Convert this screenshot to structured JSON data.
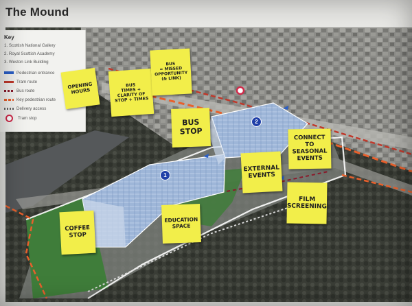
{
  "title": "The Mound",
  "key": {
    "heading": "Key",
    "items": [
      {
        "label": "1. Scottish National Gallery",
        "symbol": "none"
      },
      {
        "label": "2. Royal Scottish Academy",
        "symbol": "none"
      },
      {
        "label": "3. Weston Link Building",
        "symbol": "none"
      },
      {
        "label": "Pedestrian entrance",
        "symbol": "arrow",
        "color": "#2a5fc7"
      },
      {
        "label": "Tram route",
        "symbol": "line",
        "color": "#c0392b"
      },
      {
        "label": "Bus route",
        "symbol": "dash",
        "color": "#8b1a2b"
      },
      {
        "label": "Key pedestrian route",
        "symbol": "dash",
        "color": "#e8602c"
      },
      {
        "label": "Delivery access",
        "symbol": "dot",
        "color": "#666666"
      },
      {
        "label": "Tram stop",
        "symbol": "circle",
        "color": "#d12a4a"
      }
    ]
  },
  "markers": [
    {
      "id": "1"
    },
    {
      "id": "2"
    }
  ],
  "notes": [
    {
      "text": "OPENING\nHOURS"
    },
    {
      "text": "BUS\nTIMES +\nCLARITY OF\nSTOP + TIMES"
    },
    {
      "text": "BUS\n= MISSED\nOPPORTUNITY\n(& LINK)"
    },
    {
      "text": "BUS\nSTOP"
    },
    {
      "text": "EXTERNAL\nEVENTS"
    },
    {
      "text": "CONNECT\nTO\nSEASONAL\nEVENTS"
    },
    {
      "text": "FILM\nSCREENING"
    },
    {
      "text": "COFFEE\nSTOP"
    },
    {
      "text": "EDUCATION\nSPACE"
    }
  ],
  "colors": {
    "note": "#f2ee4a",
    "marker": "#1f3fa8",
    "tram": "#c0392b",
    "pedestrian": "#e8602c",
    "bus": "#8b1a2b",
    "lawn": "#3f7d3a"
  }
}
